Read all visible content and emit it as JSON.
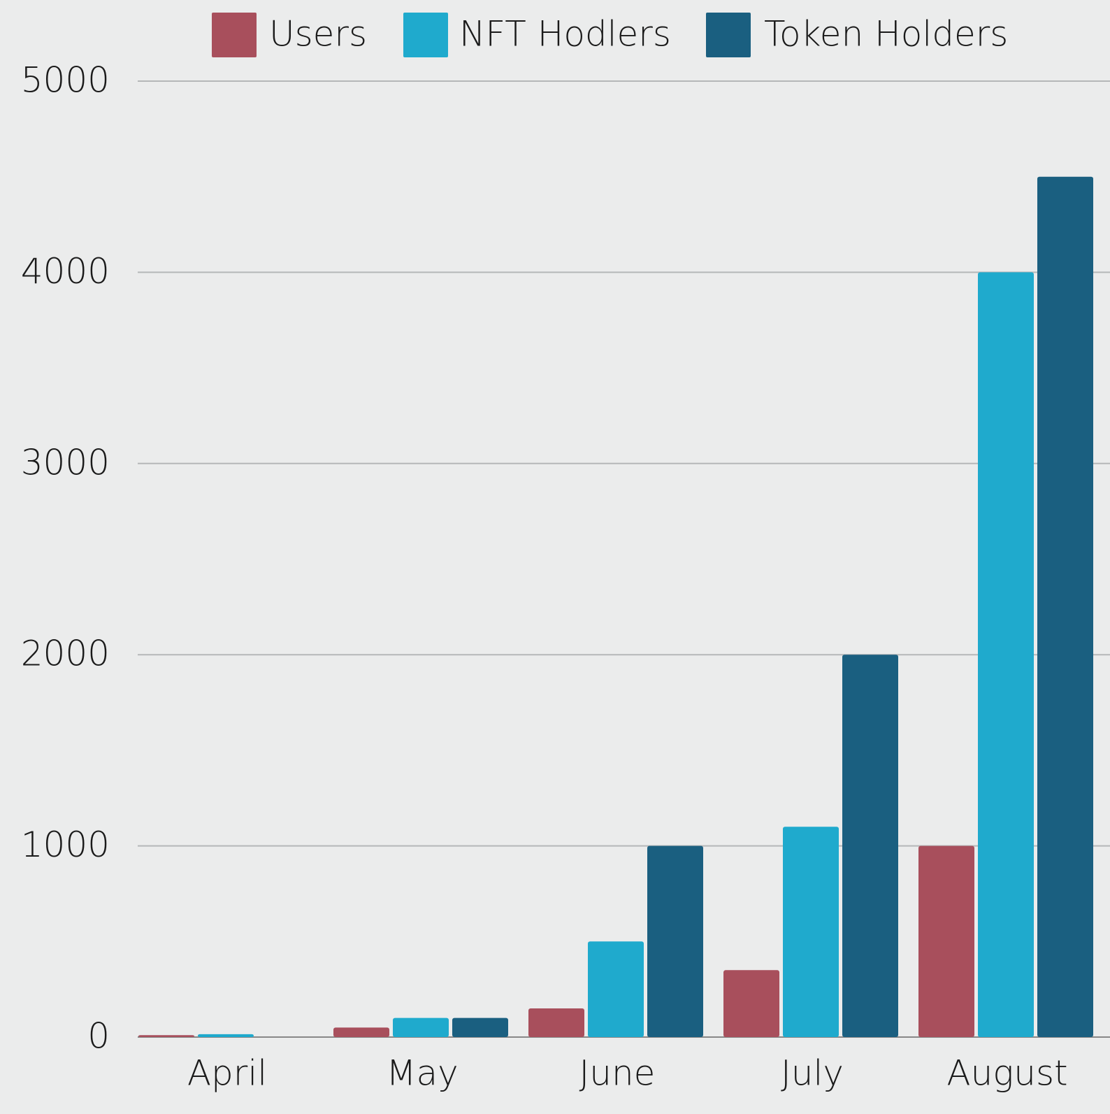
{
  "chart_data": {
    "type": "bar",
    "categories": [
      "April",
      "May",
      "June",
      "July",
      "August"
    ],
    "series": [
      {
        "name": "Users",
        "color": "#a84f5c",
        "values": [
          10,
          50,
          150,
          350,
          1000
        ]
      },
      {
        "name": "NFT Hodlers",
        "color": "#1faacd",
        "values": [
          15,
          100,
          500,
          1100,
          4000
        ]
      },
      {
        "name": "Token Holders",
        "color": "#1a5f80",
        "values": [
          0,
          100,
          1000,
          2000,
          4500
        ]
      }
    ],
    "ylim": [
      0,
      5000
    ],
    "yticks": [
      0,
      1000,
      2000,
      3000,
      4000,
      5000
    ],
    "grid": true,
    "legend": "top"
  }
}
